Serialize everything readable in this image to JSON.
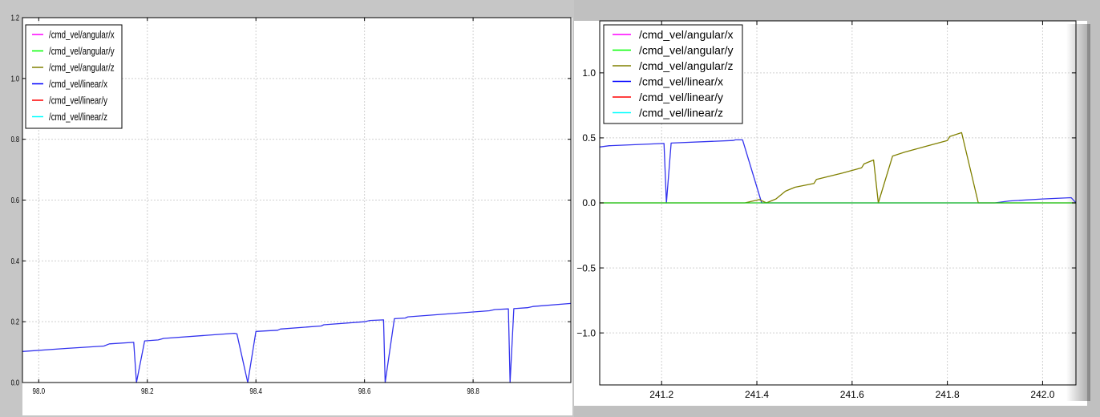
{
  "chart_data": [
    {
      "type": "line",
      "title": "",
      "xlabel": "",
      "ylabel": "",
      "xlim": [
        97.97,
        98.98
      ],
      "ylim": [
        0.0,
        1.2
      ],
      "grid": true,
      "legend_position": "top-left",
      "x_ticks": [
        "98.0",
        "98.2",
        "98.4",
        "98.6",
        "98.8"
      ],
      "x_tick_values": [
        98.0,
        98.2,
        98.4,
        98.6,
        98.8
      ],
      "y_ticks": [
        "0.0",
        "0.2",
        "0.4",
        "0.6",
        "0.8",
        "1.0",
        "1.2"
      ],
      "y_tick_values": [
        0.0,
        0.2,
        0.4,
        0.6,
        0.8,
        1.0,
        1.2
      ],
      "legend": [
        "/cmd_vel/angular/x",
        "/cmd_vel/angular/y",
        "/cmd_vel/angular/z",
        "/cmd_vel/linear/x",
        "/cmd_vel/linear/y",
        "/cmd_vel/linear/z"
      ],
      "legend_colors": [
        "#ff00ff",
        "#00ff00",
        "#808000",
        "#0000ff",
        "#ff0000",
        "#00ffff"
      ],
      "series": [
        {
          "name": "/cmd_vel/linear/x",
          "color": "#3333ee",
          "x": [
            97.97,
            98.05,
            98.12,
            98.13,
            98.175,
            98.18,
            98.195,
            98.22,
            98.23,
            98.36,
            98.365,
            98.385,
            98.4,
            98.44,
            98.445,
            98.52,
            98.525,
            98.6,
            98.61,
            98.635,
            98.638,
            98.655,
            98.675,
            98.68,
            98.83,
            98.84,
            98.865,
            98.868,
            98.875,
            98.9,
            98.91,
            98.98
          ],
          "y": [
            0.102,
            0.112,
            0.12,
            0.127,
            0.132,
            0.0,
            0.137,
            0.14,
            0.145,
            0.162,
            0.16,
            0.0,
            0.168,
            0.172,
            0.176,
            0.186,
            0.19,
            0.2,
            0.204,
            0.206,
            0.0,
            0.21,
            0.212,
            0.216,
            0.236,
            0.24,
            0.242,
            0.0,
            0.243,
            0.246,
            0.25,
            0.26
          ]
        }
      ]
    },
    {
      "type": "line",
      "title": "",
      "xlabel": "",
      "ylabel": "",
      "xlim": [
        241.07,
        242.07
      ],
      "ylim": [
        -1.4,
        1.4
      ],
      "grid": true,
      "legend_position": "top-left",
      "x_ticks": [
        "241.2",
        "241.4",
        "241.6",
        "241.8",
        "242.0"
      ],
      "x_tick_values": [
        241.2,
        241.4,
        241.6,
        241.8,
        242.0
      ],
      "y_ticks": [
        "1.0",
        "0.5",
        "0.0",
        "−0.5",
        "−1.0"
      ],
      "y_tick_values": [
        1.0,
        0.5,
        0.0,
        -0.5,
        -1.0
      ],
      "legend": [
        "/cmd_vel/angular/x",
        "/cmd_vel/angular/y",
        "/cmd_vel/angular/z",
        "/cmd_vel/linear/x",
        "/cmd_vel/linear/y",
        "/cmd_vel/linear/z"
      ],
      "legend_colors": [
        "#ff00ff",
        "#00ff00",
        "#808000",
        "#0000ff",
        "#ff0000",
        "#00ffff"
      ],
      "series": [
        {
          "name": "/cmd_vel/linear/x",
          "color": "#3333ee",
          "x": [
            241.07,
            241.09,
            241.205,
            241.21,
            241.22,
            241.35,
            241.355,
            241.37,
            241.41,
            241.9,
            241.93,
            242.0,
            242.06,
            242.07
          ],
          "y": [
            0.43,
            0.44,
            0.457,
            0.0,
            0.46,
            0.48,
            0.485,
            0.485,
            0.0,
            0.0,
            0.015,
            0.03,
            0.04,
            0.0
          ]
        },
        {
          "name": "/cmd_vel/angular/z",
          "color": "#808000",
          "x": [
            241.07,
            241.375,
            241.405,
            241.42,
            241.44,
            241.46,
            241.48,
            241.52,
            241.525,
            241.58,
            241.62,
            241.625,
            241.645,
            241.655,
            241.685,
            241.71,
            241.75,
            241.8,
            241.805,
            241.83,
            241.865,
            242.07
          ],
          "y": [
            0.0,
            0.0,
            0.025,
            0.0,
            0.03,
            0.09,
            0.12,
            0.15,
            0.18,
            0.23,
            0.27,
            0.3,
            0.33,
            0.0,
            0.36,
            0.39,
            0.43,
            0.48,
            0.51,
            0.54,
            0.0,
            0.0
          ]
        },
        {
          "name": "/cmd_vel/angular/y",
          "color": "#22cc22",
          "x": [
            241.07,
            242.07
          ],
          "y": [
            0.0,
            0.0
          ]
        }
      ]
    }
  ]
}
